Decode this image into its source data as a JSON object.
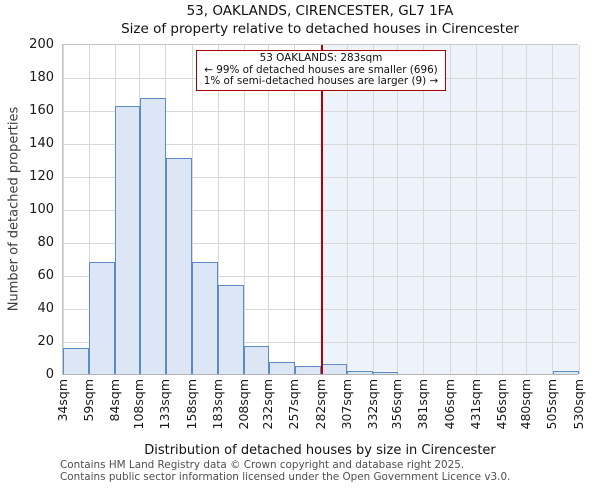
{
  "annotation": {
    "line1": "53 OAKLANDS: 283sqm",
    "line2": "← 99% of detached houses are smaller (696)",
    "line3": "1% of semi-detached houses are larger (9) →"
  },
  "footer": {
    "line1": "Contains HM Land Registry data © Crown copyright and database right 2025.",
    "line2": "Contains public sector information licensed under the Open Government Licence v3.0."
  },
  "chart_data": {
    "type": "bar",
    "title": "53, OAKLANDS, CIRENCESTER, GL7 1FA",
    "subtitle": "Size of property relative to detached houses in Cirencester",
    "xlabel": "Distribution of detached houses by size in Cirencester",
    "ylabel": "Number of detached properties",
    "bin_edges_sqm": [
      34,
      59,
      84,
      108,
      133,
      158,
      183,
      208,
      232,
      257,
      282,
      307,
      332,
      356,
      381,
      406,
      431,
      456,
      480,
      505,
      530
    ],
    "x_tick_labels": [
      "34sqm",
      "59sqm",
      "84sqm",
      "108sqm",
      "133sqm",
      "158sqm",
      "183sqm",
      "208sqm",
      "232sqm",
      "257sqm",
      "282sqm",
      "307sqm",
      "332sqm",
      "356sqm",
      "381sqm",
      "406sqm",
      "431sqm",
      "456sqm",
      "480sqm",
      "505sqm",
      "530sqm"
    ],
    "values": [
      16,
      68,
      162,
      167,
      131,
      68,
      54,
      17,
      7,
      5,
      6,
      2,
      1,
      0,
      0,
      0,
      0,
      0,
      0,
      2
    ],
    "ylim": [
      0,
      200
    ],
    "y_ticks": [
      0,
      20,
      40,
      60,
      80,
      100,
      120,
      140,
      160,
      180,
      200
    ],
    "grid": true,
    "marker_value_sqm": 283,
    "colors": {
      "bar_fill": "#dce6f4",
      "bar_edge": "#5b8cc8",
      "marker_red": "#b30000",
      "annotation_border": "#aa0000",
      "shade_right_of_marker": "#eef3fb",
      "gridline": "#d8d8d8"
    }
  }
}
